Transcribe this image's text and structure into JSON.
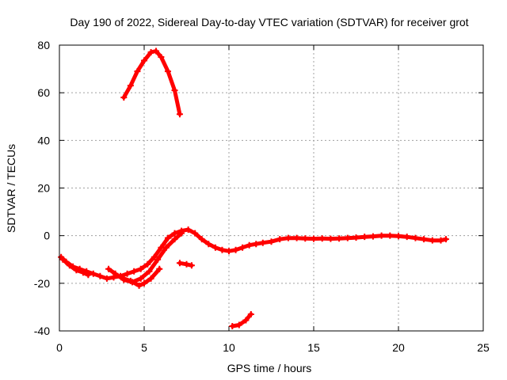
{
  "chart_data": {
    "type": "scatter",
    "title": "Day 190 of 2022, Sidereal Day-to-day VTEC variation (SDTVAR) for receiver grot",
    "xlabel": "GPS time / hours",
    "ylabel": "SDTVAR / TECUs",
    "xlim": [
      0,
      25
    ],
    "ylim": [
      -40,
      80
    ],
    "xticks": [
      "0",
      "5",
      "10",
      "15",
      "20",
      "25"
    ],
    "yticks": [
      "-40",
      "-20",
      "0",
      "20",
      "40",
      "60",
      "80"
    ],
    "grid": true,
    "color": "#ff0000",
    "series": [
      {
        "name": "arc-main",
        "x": [
          0.1,
          0.4,
          0.8,
          1.2,
          1.6,
          2.0,
          2.4,
          2.8,
          3.2,
          3.6,
          4.0,
          4.4,
          4.8,
          5.2,
          5.6,
          6.0,
          6.4,
          6.8,
          7.2,
          7.6,
          8.0,
          8.4,
          8.8,
          9.2,
          9.6,
          10.0,
          10.4,
          10.8,
          11.2,
          11.6,
          12.0,
          12.5,
          13.0,
          13.5,
          14.0,
          14.5,
          15.0,
          15.5,
          16.0,
          16.5,
          17.0,
          17.5,
          18.0,
          18.5,
          19.0,
          19.5,
          20.0,
          20.5,
          21.0,
          21.5,
          22.0,
          22.5,
          22.8
        ],
        "y": [
          -9,
          -11,
          -13,
          -14,
          -15,
          -16,
          -17,
          -18,
          -17.5,
          -17,
          -16,
          -15,
          -14,
          -12,
          -9,
          -5,
          -1,
          1,
          2,
          2.5,
          1,
          -1.5,
          -3.5,
          -5,
          -6,
          -6.5,
          -6,
          -5,
          -4,
          -3.5,
          -3,
          -2.5,
          -1.5,
          -1,
          -1,
          -1.2,
          -1.3,
          -1.2,
          -1.3,
          -1.2,
          -1,
          -0.8,
          -0.5,
          -0.3,
          0,
          0,
          -0.2,
          -0.5,
          -1,
          -1.5,
          -2,
          -2,
          -1.5
        ]
      },
      {
        "name": "arc-lower-a",
        "x": [
          0.2,
          0.6,
          1.0,
          1.4,
          1.7
        ],
        "y": [
          -10,
          -12.5,
          -14.5,
          -15.5,
          -16.5
        ]
      },
      {
        "name": "arc-lower-b",
        "x": [
          2.9,
          3.3,
          3.8,
          4.3,
          4.8,
          5.3,
          5.8,
          6.3,
          6.8,
          7.2
        ],
        "y": [
          -14,
          -16,
          -18.5,
          -19.5,
          -18,
          -15,
          -10,
          -5,
          -1.5,
          1
        ]
      },
      {
        "name": "arc-lower-c",
        "x": [
          3.8,
          4.2,
          4.7,
          5.0,
          5.4,
          5.9
        ],
        "y": [
          -18,
          -19,
          -21,
          -20,
          -18,
          -14
        ]
      },
      {
        "name": "arc-high",
        "x": [
          3.8,
          4.2,
          4.6,
          5.0,
          5.4,
          5.7,
          6.0,
          6.4,
          6.8,
          7.1
        ],
        "y": [
          58,
          63,
          69,
          73.5,
          77,
          77.5,
          75,
          69,
          61,
          51
        ]
      },
      {
        "name": "arc-short-a",
        "x": [
          7.1,
          7.5,
          7.8
        ],
        "y": [
          -11.5,
          -12,
          -12.5
        ]
      },
      {
        "name": "arc-short-b",
        "x": [
          10.2,
          10.6,
          11.0,
          11.3
        ],
        "y": [
          -38,
          -37.5,
          -35.5,
          -33
        ]
      }
    ]
  }
}
